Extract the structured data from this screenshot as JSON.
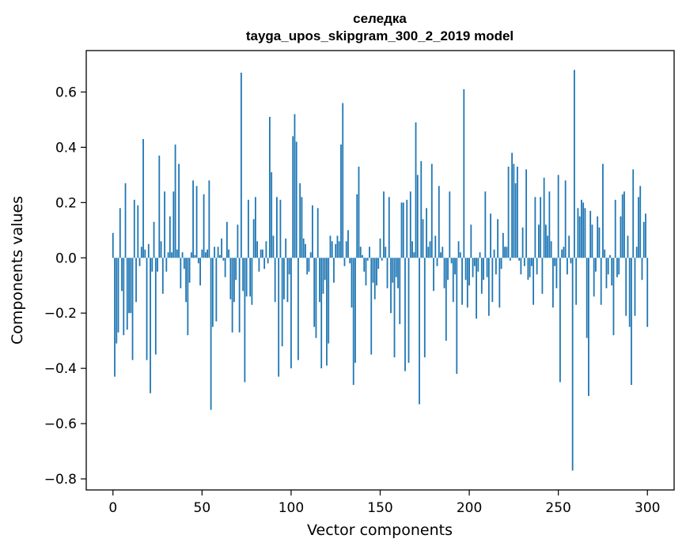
{
  "chart_data": {
    "type": "bar",
    "title_line1": "селедка",
    "title_line2": "tayga_upos_skipgram_300_2_2019 model",
    "xlabel": "Vector components",
    "ylabel": "Components values",
    "xlim": [
      -15,
      315
    ],
    "ylim": [
      -0.84,
      0.75
    ],
    "bar_color": "#1f77b4",
    "xticks": [
      {
        "value": 0,
        "label": "0"
      },
      {
        "value": 50,
        "label": "50"
      },
      {
        "value": 100,
        "label": "100"
      },
      {
        "value": 150,
        "label": "150"
      },
      {
        "value": 200,
        "label": "200"
      },
      {
        "value": 250,
        "label": "250"
      },
      {
        "value": 300,
        "label": "300"
      }
    ],
    "yticks": [
      {
        "value": 0.6,
        "label": "0.6"
      },
      {
        "value": 0.4,
        "label": "0.4"
      },
      {
        "value": 0.2,
        "label": "0.2"
      },
      {
        "value": 0.0,
        "label": "0.0"
      },
      {
        "value": -0.2,
        "label": "−0.2"
      },
      {
        "value": -0.4,
        "label": "−0.4"
      },
      {
        "value": -0.6,
        "label": "−0.6"
      },
      {
        "value": -0.8,
        "label": "−0.8"
      }
    ],
    "values": [
      0.09,
      -0.43,
      -0.31,
      -0.27,
      0.18,
      -0.12,
      -0.28,
      0.27,
      -0.26,
      -0.2,
      -0.2,
      -0.37,
      0.21,
      -0.16,
      0.19,
      -0.03,
      0.04,
      0.43,
      0.03,
      -0.37,
      0.05,
      -0.49,
      -0.05,
      0.13,
      -0.35,
      -0.05,
      0.37,
      0.06,
      -0.13,
      0.24,
      -0.05,
      0.02,
      0.15,
      0.02,
      0.24,
      0.41,
      0.03,
      0.34,
      -0.11,
      0.02,
      -0.04,
      -0.16,
      -0.28,
      -0.09,
      0.02,
      0.28,
      0.01,
      0.26,
      -0.02,
      -0.1,
      0.03,
      0.23,
      0.02,
      0.03,
      0.28,
      -0.55,
      -0.25,
      0.04,
      -0.23,
      0.04,
      0.01,
      0.07,
      -0.01,
      -0.07,
      0.13,
      0.03,
      -0.15,
      -0.27,
      -0.16,
      -0.08,
      0.12,
      -0.27,
      0.67,
      -0.12,
      -0.45,
      -0.14,
      0.21,
      -0.14,
      -0.17,
      0.14,
      0.22,
      0.06,
      -0.05,
      0.03,
      0.03,
      -0.04,
      0.06,
      -0.02,
      0.51,
      0.31,
      0.08,
      -0.16,
      0.22,
      -0.43,
      0.21,
      -0.32,
      -0.15,
      0.07,
      -0.16,
      -0.06,
      -0.4,
      0.44,
      0.52,
      0.42,
      -0.37,
      0.27,
      0.22,
      0.07,
      0.05,
      -0.06,
      -0.05,
      0.02,
      0.19,
      -0.25,
      -0.29,
      0.18,
      -0.16,
      -0.4,
      -0.13,
      -0.08,
      -0.39,
      -0.31,
      0.08,
      0.06,
      -0.09,
      0.05,
      0.08,
      0.06,
      0.41,
      0.56,
      -0.03,
      0.06,
      0.1,
      -0.02,
      -0.18,
      -0.46,
      -0.38,
      0.23,
      0.33,
      0.04,
      0.01,
      -0.05,
      -0.1,
      -0.01,
      0.04,
      -0.35,
      -0.09,
      -0.15,
      -0.1,
      -0.04,
      0.07,
      -0.01,
      0.24,
      0.04,
      -0.11,
      0.22,
      -0.2,
      -0.09,
      -0.36,
      -0.07,
      -0.11,
      -0.24,
      0.2,
      0.2,
      -0.41,
      0.21,
      -0.38,
      0.24,
      0.06,
      0.02,
      0.49,
      0.3,
      -0.53,
      0.35,
      0.14,
      -0.36,
      0.18,
      0.04,
      0.06,
      0.34,
      -0.12,
      0.08,
      -0.03,
      0.26,
      0.02,
      0.04,
      -0.11,
      -0.3,
      -0.08,
      0.24,
      -0.02,
      -0.16,
      -0.06,
      -0.42,
      0.06,
      0.02,
      -0.17,
      0.61,
      -0.08,
      -0.18,
      -0.1,
      0.12,
      -0.07,
      -0.03,
      -0.22,
      -0.05,
      0.02,
      -0.13,
      -0.08,
      0.24,
      -0.07,
      -0.21,
      0.16,
      -0.16,
      0.03,
      -0.06,
      0.14,
      -0.18,
      -0.04,
      0.09,
      0.04,
      0.04,
      0.33,
      -0.01,
      0.38,
      0.34,
      0.27,
      0.33,
      -0.01,
      -0.06,
      0.11,
      -0.03,
      0.32,
      -0.08,
      -0.07,
      -0.03,
      -0.17,
      0.22,
      -0.06,
      0.12,
      0.22,
      -0.13,
      0.29,
      0.12,
      0.08,
      0.24,
      0.06,
      -0.18,
      -0.03,
      -0.11,
      0.3,
      -0.45,
      0.03,
      0.04,
      0.28,
      -0.06,
      0.08,
      -0.02,
      -0.77,
      0.68,
      -0.17,
      0.18,
      0.15,
      0.21,
      0.2,
      0.18,
      -0.29,
      -0.5,
      0.17,
      0.12,
      -0.14,
      -0.05,
      0.15,
      0.11,
      -0.17,
      0.34,
      0.03,
      -0.11,
      -0.06,
      0.01,
      -0.1,
      -0.28,
      0.21,
      -0.07,
      -0.06,
      0.15,
      0.23,
      0.24,
      -0.21,
      0.08,
      -0.25,
      -0.46,
      0.32,
      -0.21,
      0.04,
      0.22,
      0.26,
      -0.08,
      0.13,
      0.16,
      -0.25
    ]
  }
}
